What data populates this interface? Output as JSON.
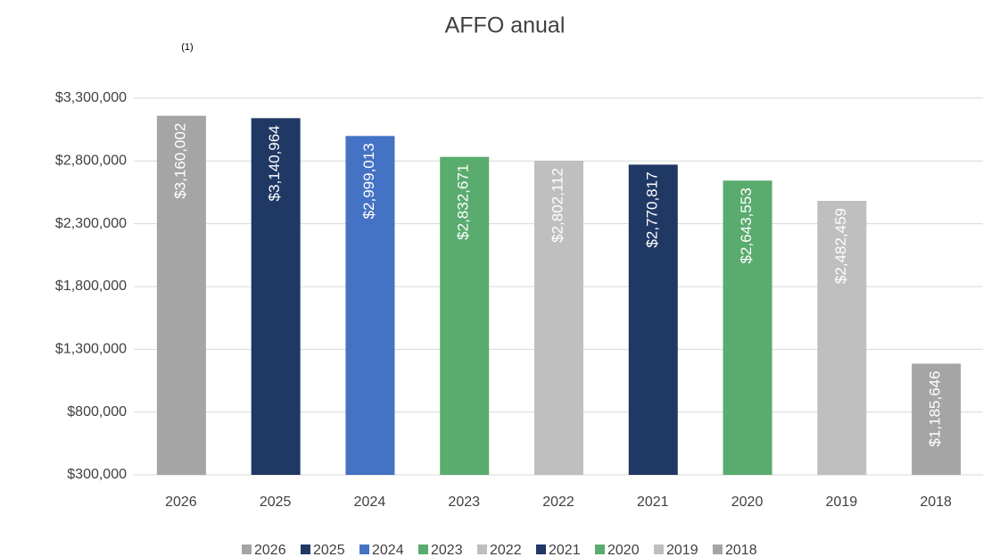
{
  "chart_data": {
    "type": "bar",
    "title": "AFFO anual",
    "annotation": "(1)",
    "categories": [
      "2026",
      "2025",
      "2024",
      "2023",
      "2022",
      "2021",
      "2020",
      "2019",
      "2018"
    ],
    "values": [
      3160002,
      3140964,
      2999013,
      2832671,
      2802112,
      2770817,
      2643553,
      2482459,
      1185646
    ],
    "value_labels": [
      "$3,160,002",
      "$3,140,964",
      "$2,999,013",
      "$2,832,671",
      "$2,802,112",
      "$2,770,817",
      "$2,643,553",
      "$2,482,459",
      "$1,185,646"
    ],
    "colors": [
      "#a5a5a5",
      "#203864",
      "#4472c4",
      "#5aab6e",
      "#bfbfbf",
      "#203864",
      "#5aab6e",
      "#bfbfbf",
      "#a5a5a5"
    ],
    "ylim": [
      300000,
      3300000
    ],
    "yticks": [
      {
        "value": 300000,
        "label": "$300,000"
      },
      {
        "value": 800000,
        "label": "$800,000"
      },
      {
        "value": 1300000,
        "label": "$1,300,000"
      },
      {
        "value": 1800000,
        "label": "$1,800,000"
      },
      {
        "value": 2300000,
        "label": "$2,300,000"
      },
      {
        "value": 2800000,
        "label": "$2,800,000"
      },
      {
        "value": 3300000,
        "label": "$3,300,000"
      }
    ],
    "grid": true,
    "legend": "bottom"
  }
}
